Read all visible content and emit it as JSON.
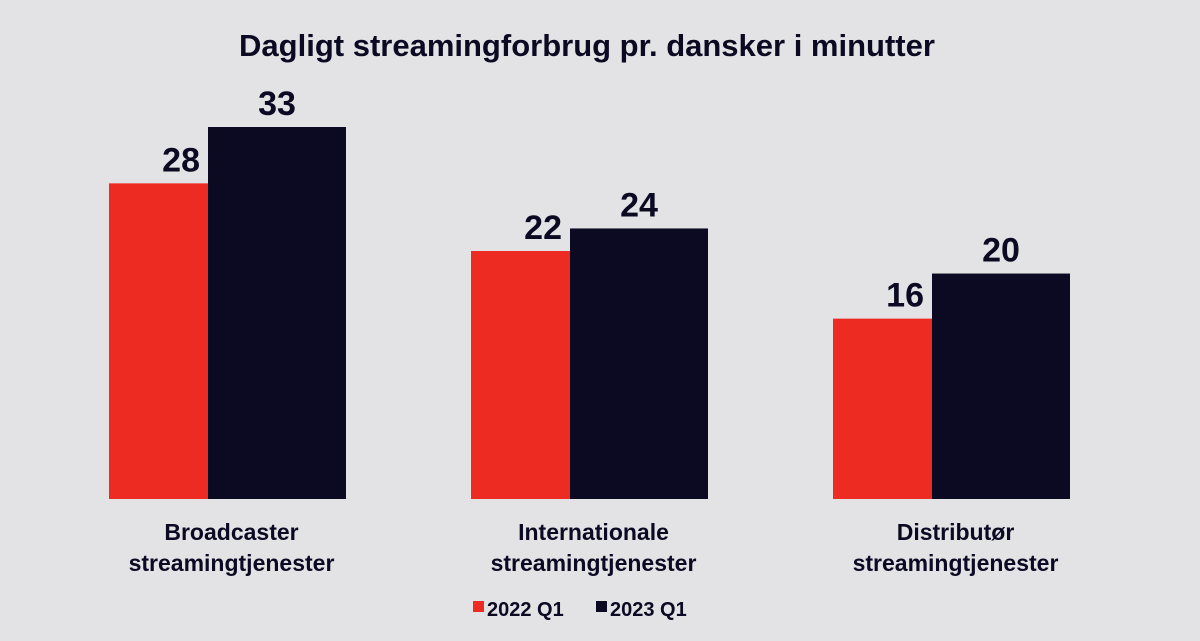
{
  "chart_data": {
    "type": "bar",
    "title": "Dagligt streamingforbrug pr. dansker i minutter",
    "categories": [
      [
        "Broadcaster",
        "streamingtjenester"
      ],
      [
        "Internationale",
        "streamingtjenester"
      ],
      [
        "Distributør",
        "streamingtjenester"
      ]
    ],
    "series": [
      {
        "name": "2022 Q1",
        "values": [
          28,
          22,
          16
        ],
        "color": "#ee2b22"
      },
      {
        "name": "2023 Q1",
        "values": [
          33,
          24,
          20
        ],
        "color": "#0b0a22"
      }
    ],
    "ylim": [
      0,
      33
    ],
    "grid": false,
    "legend_position": "bottom-center",
    "data_labels": true
  }
}
